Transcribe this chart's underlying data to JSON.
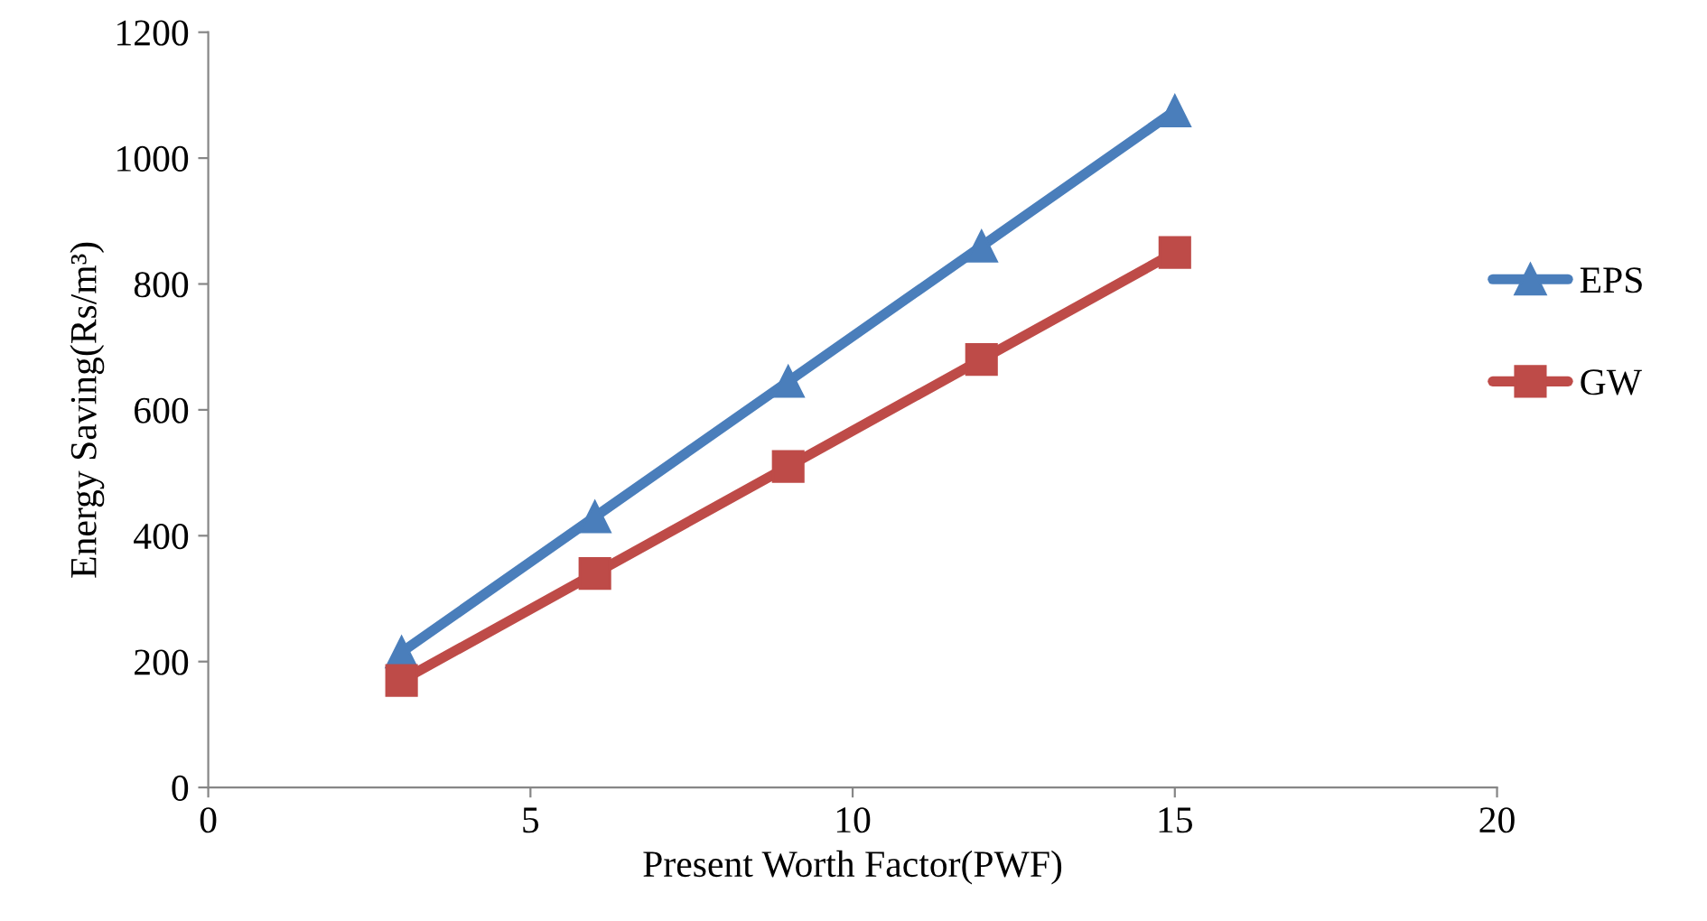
{
  "chart_data": {
    "type": "line",
    "xlabel": "Present Worth Factor(PWF)",
    "ylabel": "Energy Saving(Rs/m³)",
    "x": [
      3,
      6,
      9,
      12,
      15
    ],
    "series": [
      {
        "name": "EPS",
        "color": "#4a7ebb",
        "marker": "triangle",
        "values": [
          215,
          430,
          645,
          860,
          1075
        ]
      },
      {
        "name": "GW",
        "color": "#be4b48",
        "marker": "square",
        "values": [
          170,
          340,
          510,
          680,
          850
        ]
      }
    ],
    "xlim": [
      0,
      20
    ],
    "xticks": [
      0,
      5,
      10,
      15,
      20
    ],
    "ylim": [
      0,
      1200
    ],
    "yticks": [
      0,
      200,
      400,
      600,
      800,
      1000,
      1200
    ],
    "grid": false,
    "legend": "right",
    "line_style": "solid"
  }
}
